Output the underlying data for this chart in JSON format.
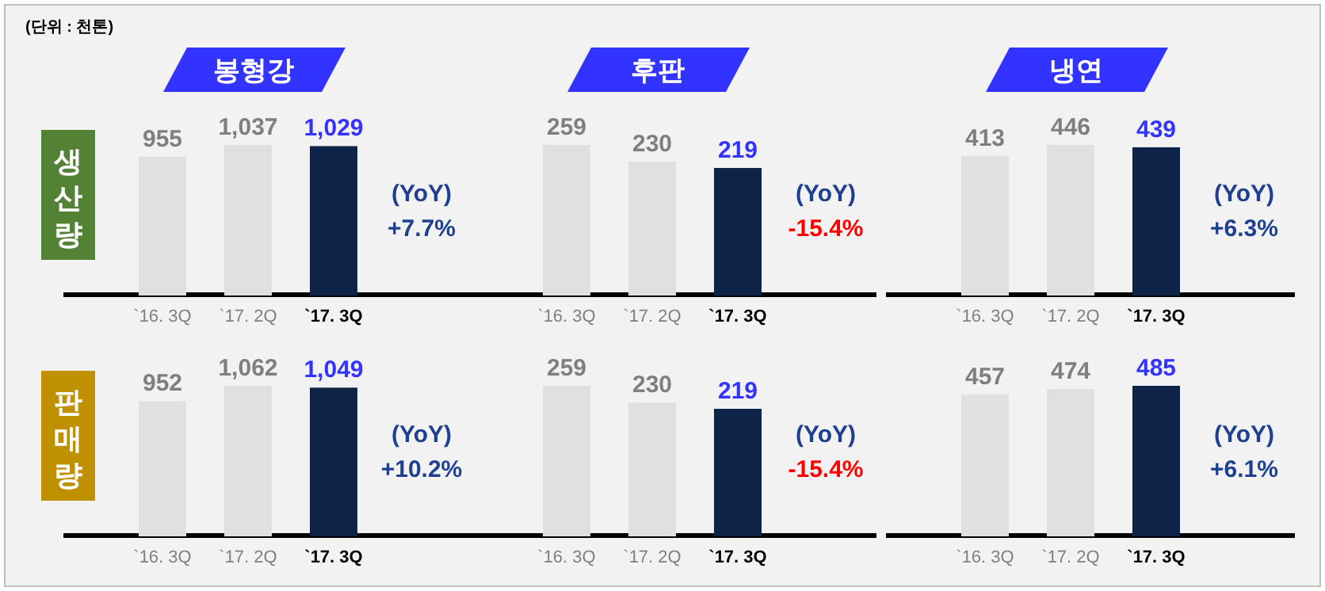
{
  "chart_data": [
    {
      "type": "bar",
      "title": "봉형강",
      "ylabel": "생산량",
      "categories": [
        "`16. 3Q",
        "`17. 2Q",
        "`17. 3Q"
      ],
      "values": [
        955,
        1037,
        1029
      ],
      "colors": [
        "#e0e0e0",
        "#e0e0e0",
        "#0d2448"
      ],
      "value_labels": [
        "955",
        "1,037",
        "1,029"
      ],
      "annotations": [
        "(단위 : 천톤)",
        "(YoY)",
        "+7.7%"
      ]
    },
    {
      "type": "bar",
      "title": "후판",
      "categories": [
        "`16. 3Q",
        "`17. 2Q",
        "`17. 3Q"
      ],
      "values": [
        259,
        230,
        219
      ],
      "colors": [
        "#e0e0e0",
        "#e0e0e0",
        "#0d2448"
      ],
      "value_labels": [
        "259",
        "230",
        "219"
      ],
      "annotations": [
        "(YoY)",
        "-15.4%"
      ]
    },
    {
      "type": "bar",
      "title": "냉연",
      "categories": [
        "`16. 3Q",
        "`17. 2Q",
        "`17. 3Q"
      ],
      "values": [
        413,
        446,
        439
      ],
      "colors": [
        "#e0e0e0",
        "#e0e0e0",
        "#0d2448"
      ],
      "value_labels": [
        "413",
        "446",
        "439"
      ],
      "annotations": [
        "(YoY)",
        "+6.3%"
      ]
    },
    {
      "type": "bar",
      "ylabel": "판매량",
      "categories": [
        "`16. 3Q",
        "`17. 2Q",
        "`17. 3Q"
      ],
      "values": [
        952,
        1062,
        1049
      ],
      "colors": [
        "#e0e0e0",
        "#e0e0e0",
        "#0d2448"
      ],
      "value_labels": [
        "952",
        "1,062",
        "1,049"
      ],
      "annotations": [
        "(YoY)",
        "+10.2%"
      ]
    },
    {
      "type": "bar",
      "categories": [
        "`16. 3Q",
        "`17. 2Q",
        "`17. 3Q"
      ],
      "values": [
        259,
        230,
        219
      ],
      "colors": [
        "#e0e0e0",
        "#e0e0e0",
        "#0d2448"
      ],
      "value_labels": [
        "259",
        "230",
        "219"
      ],
      "annotations": [
        "(YoY)",
        "-15.4%"
      ]
    },
    {
      "type": "bar",
      "categories": [
        "`16. 3Q",
        "`17. 2Q",
        "`17. 3Q"
      ],
      "values": [
        457,
        474,
        485
      ],
      "colors": [
        "#e0e0e0",
        "#e0e0e0",
        "#0d2448"
      ],
      "value_labels": [
        "457",
        "474",
        "485"
      ],
      "annotations": [
        "(YoY)",
        "+6.1%"
      ]
    }
  ]
}
